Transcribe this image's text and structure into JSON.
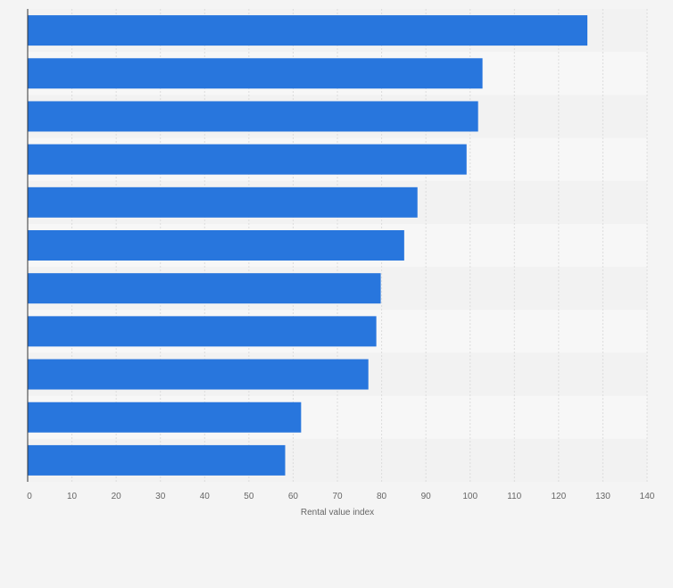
{
  "chart_data": {
    "type": "bar",
    "orientation": "horizontal",
    "values": [
      126.5,
      102.8,
      101.8,
      99.2,
      88.1,
      85.1,
      79.8,
      78.8,
      77.0,
      61.8,
      58.2
    ],
    "xlabel": "Rental value index",
    "ylabel": "",
    "xlim": [
      0,
      140
    ],
    "xticks": [
      "0",
      "10",
      "20",
      "30",
      "40",
      "50",
      "60",
      "70",
      "80",
      "90",
      "100",
      "110",
      "120",
      "130",
      "140"
    ],
    "grid": true,
    "bar_color": "#2876dd",
    "band_colors": [
      "#f2f2f2",
      "#f7f7f7"
    ]
  }
}
